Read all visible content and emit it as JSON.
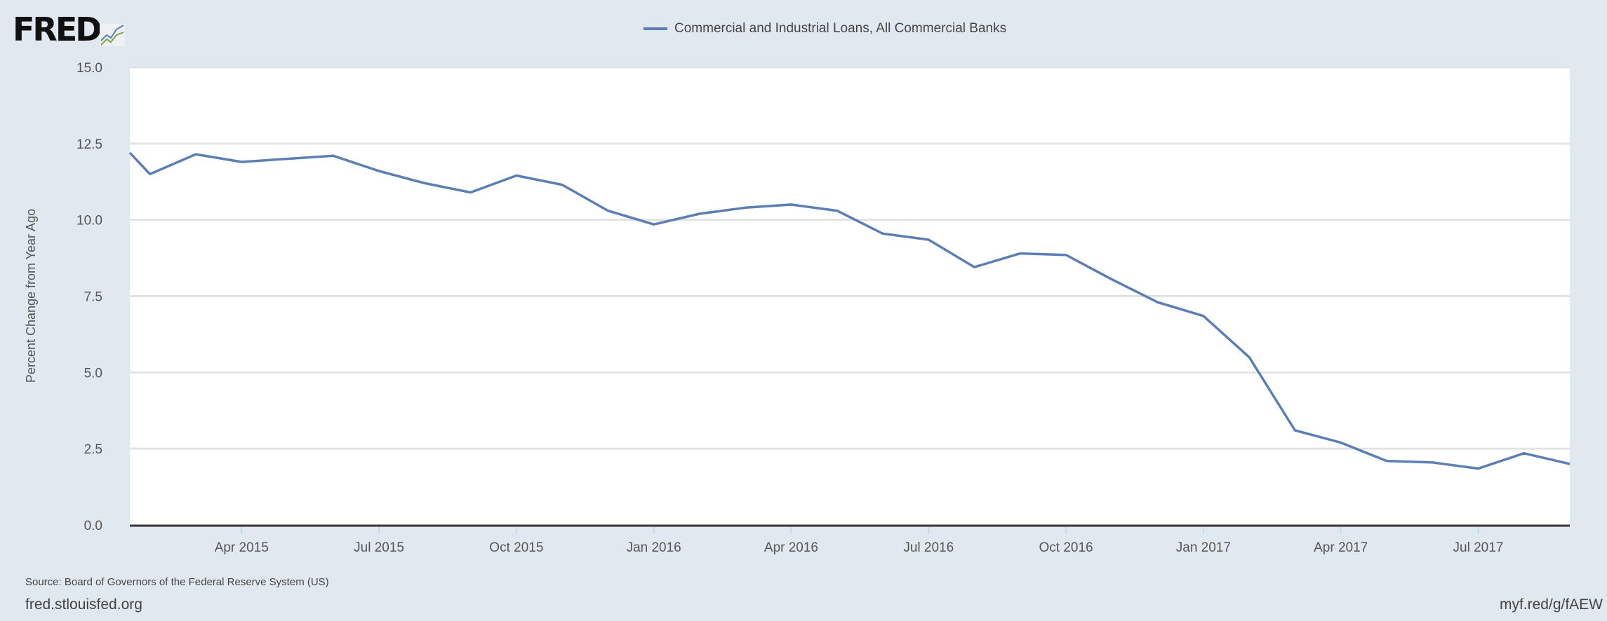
{
  "logo": {
    "text": "FRED"
  },
  "chart_data": {
    "type": "line",
    "title": "",
    "legend": [
      "Commercial and Industrial Loans, All Commercial Banks"
    ],
    "legend_placement": "top-center",
    "xlabel": "",
    "ylabel": "Percent Change from Year Ago",
    "x_unit": "months since Jan 2015",
    "xlim": [
      0.56,
      32
    ],
    "ylim": [
      0,
      15
    ],
    "grid": true,
    "y_ticks": [
      "0.0",
      "2.5",
      "5.0",
      "7.5",
      "10.0",
      "12.5",
      "15.0"
    ],
    "x_ticks": [
      {
        "label": "Apr 2015",
        "x": 3
      },
      {
        "label": "Jul 2015",
        "x": 6
      },
      {
        "label": "Oct 2015",
        "x": 9
      },
      {
        "label": "Jan 2016",
        "x": 12
      },
      {
        "label": "Apr 2016",
        "x": 15
      },
      {
        "label": "Jul 2016",
        "x": 18
      },
      {
        "label": "Oct 2016",
        "x": 21
      },
      {
        "label": "Jan 2017",
        "x": 24
      },
      {
        "label": "Apr 2017",
        "x": 27
      },
      {
        "label": "Jul 2017",
        "x": 30
      }
    ],
    "series": [
      {
        "name": "Commercial and Industrial Loans, All Commercial Banks",
        "color": "#5b7fb5",
        "x": [
          0.56,
          1,
          2,
          3,
          4,
          5,
          6,
          7,
          8,
          9,
          10,
          11,
          12,
          13,
          14,
          15,
          16,
          17,
          18,
          19,
          20,
          21,
          22,
          23,
          24,
          25,
          26,
          27,
          28,
          29,
          30,
          31,
          32
        ],
        "values": [
          12.2,
          11.5,
          12.15,
          11.9,
          12.0,
          12.1,
          11.6,
          11.2,
          10.9,
          11.45,
          11.15,
          10.3,
          9.85,
          10.2,
          10.4,
          10.5,
          10.3,
          9.55,
          9.35,
          8.45,
          8.9,
          8.85,
          8.05,
          7.3,
          6.85,
          5.5,
          3.1,
          2.7,
          2.1,
          2.05,
          1.85,
          2.35,
          2.0
        ]
      }
    ]
  },
  "footer": {
    "source": "Source: Board of Governors of the Federal Reserve System (US)",
    "site": "fred.stlouisfed.org",
    "shortlink": "myf.red/g/fAEW"
  }
}
